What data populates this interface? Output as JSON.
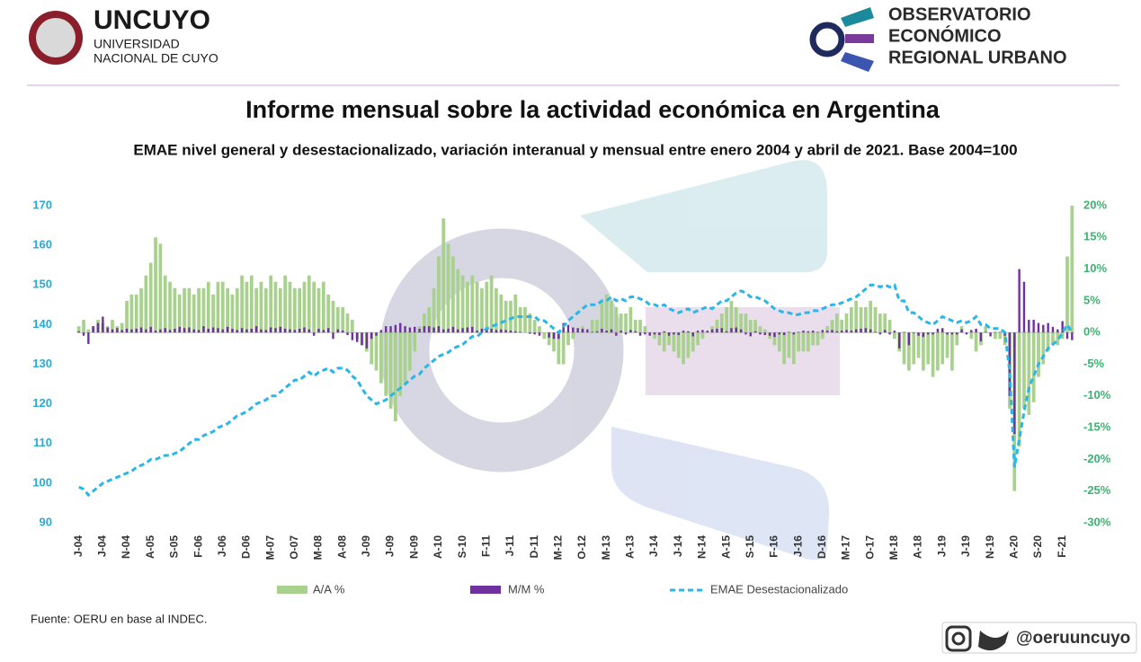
{
  "header": {
    "uni": "UNCUYO",
    "uni_sub1": "UNIVERSIDAD",
    "uni_sub2": "NACIONAL DE CUYO",
    "obs1": "OBSERVATORIO",
    "obs2": "ECONÓMICO",
    "obs3": "REGIONAL URBANO"
  },
  "footer": {
    "source": "Fuente: OERU en base al INDEC.",
    "handle": "@oeruuncuyo"
  },
  "chart_data": {
    "type": "bar-line",
    "title": "Informe mensual sobre la actividad económica en Argentina",
    "subtitle": "EMAE nivel general y desestacionalizado, variación interanual y mensual entre enero 2004 y abril de 2021. Base 2004=100",
    "categories": [
      "J-04",
      null,
      null,
      null,
      null,
      "J-04",
      null,
      null,
      null,
      null,
      "N-04",
      null,
      null,
      null,
      null,
      "A-05",
      null,
      null,
      null,
      null,
      "S-05",
      null,
      null,
      null,
      null,
      "F-06",
      null,
      null,
      null,
      null,
      "J-06",
      null,
      null,
      null,
      null,
      "D-06",
      null,
      null,
      null,
      null,
      "M-07",
      null,
      null,
      null,
      null,
      "O-07",
      null,
      null,
      null,
      null,
      "M-08",
      null,
      null,
      null,
      null,
      "A-08",
      null,
      null,
      null,
      null,
      "J-09",
      null,
      null,
      null,
      null,
      "J-09",
      null,
      null,
      null,
      null,
      "N-09",
      null,
      null,
      null,
      null,
      "A-10",
      null,
      null,
      null,
      null,
      "S-10",
      null,
      null,
      null,
      null,
      "F-11",
      null,
      null,
      null,
      null,
      "J-11",
      null,
      null,
      null,
      null,
      "D-11",
      null,
      null,
      null,
      null,
      "M-12",
      null,
      null,
      null,
      null,
      "O-12",
      null,
      null,
      null,
      null,
      "M-13",
      null,
      null,
      null,
      null,
      "A-13",
      null,
      null,
      null,
      null,
      "J-14",
      null,
      null,
      null,
      null,
      "J-14",
      null,
      null,
      null,
      null,
      "N-14",
      null,
      null,
      null,
      null,
      "A-15",
      null,
      null,
      null,
      null,
      "S-15",
      null,
      null,
      null,
      null,
      "F-16",
      null,
      null,
      null,
      null,
      "J-16",
      null,
      null,
      null,
      null,
      "D-16",
      null,
      null,
      null,
      null,
      "M-17",
      null,
      null,
      null,
      null,
      "O-17",
      null,
      null,
      null,
      null,
      "M-18",
      null,
      null,
      null,
      null,
      "A-18",
      null,
      null,
      null,
      null,
      "J-19",
      null,
      null,
      null,
      null,
      "J-19",
      null,
      null,
      null,
      null,
      "N-19",
      null,
      null,
      null,
      null,
      "A-20",
      null,
      null,
      null,
      null,
      "S-20",
      null,
      null,
      null,
      null,
      "F-21",
      null,
      null
    ],
    "series": [
      {
        "name": "A/A %",
        "color": "#a9d18e",
        "axis": "y2",
        "kind": "bar",
        "values": [
          1,
          2,
          0.5,
          1,
          2,
          1.5,
          1,
          2,
          1,
          1.5,
          5,
          6,
          6,
          7,
          9,
          11,
          15,
          14,
          9,
          8,
          7,
          6,
          7,
          7,
          6,
          7,
          7,
          8,
          6,
          8,
          8,
          7,
          6,
          7,
          9,
          8,
          9,
          7,
          8,
          7,
          9,
          8,
          7,
          9,
          8,
          7,
          7,
          8,
          9,
          8,
          7,
          8,
          6,
          5,
          4,
          4,
          3,
          2,
          -1,
          -2,
          -3,
          -5,
          -6,
          -8,
          -10,
          -12,
          -14,
          -10,
          -8,
          -6,
          -3,
          1,
          3,
          4,
          7,
          12,
          18,
          14,
          12,
          10,
          9,
          8,
          9,
          8,
          7,
          8,
          9,
          7,
          6,
          5,
          5,
          6,
          4,
          4,
          3,
          2,
          1,
          -1,
          -2,
          -3,
          -5,
          -5,
          -2,
          -1,
          0,
          1,
          0,
          2,
          2,
          5,
          6,
          5,
          4,
          3,
          3,
          4,
          2,
          2,
          1,
          0,
          -1,
          -2,
          -3,
          -2,
          -3,
          -4,
          -5,
          -4,
          -3,
          -2,
          -1,
          0,
          1,
          2,
          3,
          4,
          5,
          4,
          3,
          3,
          2,
          2,
          1,
          0.5,
          -1,
          -2,
          -3,
          -5,
          -4,
          -5,
          -3,
          -3,
          -3,
          -2,
          -2,
          -1,
          1,
          2,
          3,
          2,
          3,
          4,
          5,
          4,
          4,
          5,
          4,
          3,
          3,
          2,
          -1,
          -3,
          -5,
          -6,
          -5,
          -4,
          -6,
          -5,
          -7,
          -6,
          -5,
          -4,
          -6,
          -2,
          1,
          0,
          -1,
          -3,
          -2,
          1,
          0,
          -1,
          -1,
          -2,
          -12,
          -25,
          -18,
          -12,
          -13,
          -11,
          -7,
          -5,
          -3,
          -2,
          -2,
          -1,
          12,
          20
        ]
      },
      {
        "name": "M/M %",
        "color": "#7030a0",
        "axis": "y2",
        "kind": "bar",
        "values": [
          0.2,
          -0.5,
          -1.8,
          1,
          1.5,
          2.5,
          0.8,
          0.5,
          0.7,
          0.4,
          0.6,
          0.5,
          0.6,
          0.8,
          0.5,
          0.9,
          0.3,
          0.5,
          0.7,
          0.4,
          0.6,
          0.9,
          0.7,
          0.8,
          0.5,
          0.4,
          1,
          0.6,
          0.8,
          0.7,
          0.5,
          0.9,
          0.6,
          0.4,
          0.7,
          0.5,
          0.6,
          1,
          0.5,
          0.4,
          0.8,
          0.7,
          0.9,
          0.6,
          0.5,
          0.4,
          0.6,
          0.8,
          0.5,
          -0.5,
          0.6,
          0.4,
          0.7,
          -1,
          0.5,
          0.3,
          -0.4,
          -1.2,
          -1.5,
          -2,
          -2.5,
          -1,
          -0.5,
          0.4,
          1,
          1,
          1.2,
          1.5,
          1,
          0.8,
          0.9,
          0.6,
          1,
          1,
          0.8,
          1,
          0.5,
          0.6,
          0.9,
          0.5,
          0.7,
          0.8,
          0.9,
          0.3,
          0.6,
          0.5,
          0.6,
          0.4,
          0.5,
          0.4,
          0.3,
          0.2,
          0.1,
          0,
          -0.2,
          -0.3,
          -0.5,
          0,
          -0.8,
          -1,
          -1,
          1.5,
          1.2,
          0.8,
          0.7,
          0.6,
          0.5,
          0.1,
          0.2,
          0.6,
          0.3,
          0.5,
          -0.5,
          0.3,
          -0.3,
          0.4,
          0.2,
          -0.5,
          -0.3,
          -0.5,
          -0.3,
          -0.4,
          0.2,
          -0.5,
          -0.3,
          -0.4,
          0.3,
          0.2,
          -0.6,
          0.3,
          0.4,
          0.3,
          0.5,
          0.6,
          0.7,
          0.2,
          0.7,
          0.8,
          0.5,
          -0.3,
          -0.6,
          0.2,
          -0.3,
          -0.4,
          -0.5,
          -0.7,
          -0.3,
          -0.4,
          0.1,
          -0.3,
          0.1,
          0.3,
          0.2,
          0.3,
          0.1,
          0.4,
          0.3,
          0.4,
          0.2,
          0.3,
          0.4,
          0.3,
          0.5,
          0.6,
          0.7,
          0.5,
          0.1,
          -0.3,
          0.4,
          -0.3,
          0.3,
          -2.5,
          0.1,
          -2,
          -0.1,
          -0.5,
          -0.7,
          -0.3,
          -0.3,
          0.6,
          0.7,
          -0.3,
          -0.3,
          -0.3,
          0.5,
          -0.3,
          0.4,
          0.6,
          -1.4,
          0.1,
          -0.6,
          0.1,
          0.1,
          -0.5,
          -10,
          -16,
          10,
          8,
          2,
          2,
          1.5,
          1.2,
          1.5,
          0.9,
          0.5,
          1.8,
          -1,
          -1.2
        ]
      },
      {
        "name": "EMAE Desestacionalizado",
        "color": "#29b6e8",
        "axis": "y",
        "kind": "line",
        "values": [
          99,
          98.5,
          97,
          98,
          99,
          100,
          100.5,
          101,
          101.5,
          102,
          102.5,
          103,
          104,
          104.5,
          105,
          106,
          106,
          106.5,
          107,
          107,
          107.5,
          108,
          109,
          110,
          111,
          111,
          112,
          112.5,
          113,
          114,
          114.5,
          115,
          116,
          117,
          117.5,
          118,
          119,
          120,
          120.5,
          121,
          122,
          122,
          123,
          124,
          125,
          126,
          126,
          127,
          128,
          127,
          128,
          128.5,
          129,
          128,
          129,
          129,
          128.5,
          127,
          126,
          124,
          122,
          121,
          120,
          120.5,
          121,
          122,
          123,
          124,
          125,
          126,
          127,
          127.5,
          129,
          130,
          131,
          132,
          132.5,
          133,
          134,
          134.5,
          135,
          136,
          137,
          137,
          138,
          139,
          139.5,
          140,
          140.5,
          141,
          141.5,
          142,
          142,
          142,
          142,
          142,
          141,
          141,
          140,
          139,
          138,
          139.5,
          141,
          142,
          143,
          144,
          145,
          145,
          145,
          146,
          146,
          147,
          146,
          146.5,
          146,
          147,
          147,
          146.5,
          146,
          145,
          145,
          144.5,
          145,
          144,
          143.5,
          143,
          143.5,
          144,
          143,
          143.5,
          144,
          144.5,
          144,
          145,
          146,
          146,
          147,
          148,
          148.5,
          148,
          147,
          147,
          146.5,
          146,
          145,
          144,
          143.5,
          143,
          143,
          142.5,
          142.5,
          143,
          143,
          143.5,
          143.5,
          144,
          144.5,
          145,
          145,
          145.5,
          146,
          146.5,
          147,
          148,
          149,
          150,
          150,
          149.5,
          150,
          149.5,
          150,
          146,
          146,
          143,
          143,
          142,
          141,
          140.5,
          140,
          141,
          142,
          141.5,
          141,
          140.5,
          141,
          140.5,
          141,
          142,
          140,
          140,
          139,
          139,
          139,
          138,
          128,
          104,
          111,
          118,
          124,
          127,
          130,
          132,
          134,
          135,
          136,
          138,
          140,
          138
        ]
      }
    ],
    "ylim": [
      90,
      170
    ],
    "yticks": [
      90,
      100,
      110,
      120,
      130,
      140,
      150,
      160,
      170
    ],
    "y2lim": [
      -30,
      20
    ],
    "y2ticks": [
      {
        "value": -30,
        "label": "-30%"
      },
      {
        "value": -25,
        "label": "-25%"
      },
      {
        "value": -20,
        "label": "-20%"
      },
      {
        "value": -15,
        "label": "-15%"
      },
      {
        "value": -10,
        "label": "-10%"
      },
      {
        "value": -5,
        "label": "-5%"
      },
      {
        "value": 0,
        "label": "0%"
      },
      {
        "value": 5,
        "label": "5%"
      },
      {
        "value": 10,
        "label": "10%"
      },
      {
        "value": 15,
        "label": "15%"
      },
      {
        "value": 20,
        "label": "20%"
      }
    ],
    "grid": false,
    "legend": "bottom"
  }
}
